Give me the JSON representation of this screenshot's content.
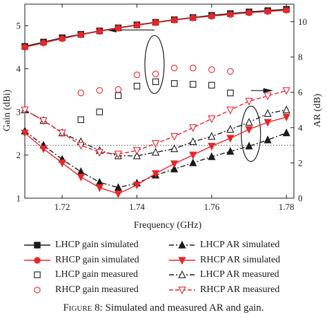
{
  "caption": {
    "figure_label": "Figure 8:",
    "text": "Simulated and measured AR and gain."
  },
  "colors": {
    "black": "#1a1a1a",
    "red": "#e8262a",
    "frame": "#1a1a1a"
  },
  "chart_data": {
    "type": "line",
    "xlabel": "Frequency (GHz)",
    "ylabel_left": "Gain (dBi)",
    "ylabel_right": "AR (dB)",
    "xlim": [
      1.71,
      1.782
    ],
    "ylim_left": [
      1,
      5.5
    ],
    "ylim_right": [
      0,
      11
    ],
    "x_ticks": [
      "1.72",
      "1.74",
      "1.76",
      "1.78"
    ],
    "y_ticks_left": [
      "1",
      "2",
      "3",
      "4",
      "5"
    ],
    "y_ticks_right": [
      "0",
      "2",
      "4",
      "6",
      "8",
      "10"
    ],
    "reference_line": {
      "axis": "right",
      "y": 3,
      "style": "dotted"
    },
    "annotations": [
      {
        "type": "ellipse-arrow",
        "series_group": "gain",
        "points_to": "left axis"
      },
      {
        "type": "ellipse-arrow",
        "series_group": "AR",
        "points_to": "right axis"
      }
    ],
    "legend_position": "bottom",
    "series": [
      {
        "name": "LHCP gain simulated",
        "axis": "left",
        "color": "black",
        "marker": "filled-square",
        "line": "solid",
        "x": [
          1.71,
          1.715,
          1.72,
          1.725,
          1.73,
          1.735,
          1.74,
          1.745,
          1.75,
          1.755,
          1.76,
          1.765,
          1.77,
          1.775,
          1.78
        ],
        "y": [
          4.52,
          4.62,
          4.72,
          4.8,
          4.88,
          4.95,
          5.02,
          5.08,
          5.14,
          5.19,
          5.24,
          5.28,
          5.32,
          5.35,
          5.38
        ]
      },
      {
        "name": "RHCP gain simulated",
        "axis": "left",
        "color": "red",
        "marker": "filled-circle",
        "line": "solid",
        "x": [
          1.71,
          1.715,
          1.72,
          1.725,
          1.73,
          1.735,
          1.74,
          1.745,
          1.75,
          1.755,
          1.76,
          1.765,
          1.77,
          1.775,
          1.78
        ],
        "y": [
          4.5,
          4.6,
          4.7,
          4.79,
          4.87,
          4.94,
          5.01,
          5.07,
          5.13,
          5.18,
          5.22,
          5.26,
          5.3,
          5.33,
          5.36
        ]
      },
      {
        "name": "LHCP gain measured",
        "axis": "left",
        "color": "black",
        "marker": "open-square",
        "line": "none",
        "x": [
          1.725,
          1.73,
          1.735,
          1.74,
          1.745,
          1.75,
          1.755,
          1.76,
          1.765
        ],
        "y": [
          2.82,
          3.0,
          3.38,
          3.6,
          3.7,
          3.66,
          3.64,
          3.62,
          3.44
        ]
      },
      {
        "name": "RHCP gain measured",
        "axis": "left",
        "color": "red",
        "marker": "open-circle",
        "line": "none",
        "x": [
          1.725,
          1.73,
          1.735,
          1.74,
          1.745,
          1.75,
          1.755,
          1.76,
          1.765
        ],
        "y": [
          3.44,
          3.5,
          3.52,
          3.86,
          3.88,
          4.02,
          4.02,
          3.98,
          3.94
        ]
      },
      {
        "name": "LHCP AR simulated",
        "axis": "right",
        "color": "black",
        "marker": "filled-triangle-up",
        "line": "dash-dot",
        "x": [
          1.71,
          1.715,
          1.72,
          1.725,
          1.73,
          1.735,
          1.74,
          1.745,
          1.75,
          1.755,
          1.76,
          1.765,
          1.77,
          1.775,
          1.78
        ],
        "y": [
          3.8,
          3.0,
          2.2,
          1.5,
          0.9,
          0.6,
          0.85,
          1.3,
          1.65,
          2.0,
          2.35,
          2.65,
          2.95,
          3.3,
          3.7
        ]
      },
      {
        "name": "RHCP AR simulated",
        "axis": "right",
        "color": "red",
        "marker": "filled-triangle-down",
        "line": "solid",
        "x": [
          1.71,
          1.715,
          1.72,
          1.725,
          1.73,
          1.735,
          1.74,
          1.745,
          1.75,
          1.755,
          1.76,
          1.765,
          1.77,
          1.775,
          1.78
        ],
        "y": [
          3.7,
          2.8,
          2.0,
          1.2,
          0.6,
          0.25,
          0.75,
          1.4,
          1.95,
          2.45,
          2.95,
          3.4,
          3.9,
          4.3,
          4.6
        ]
      },
      {
        "name": "LHCP AR measured",
        "axis": "right",
        "color": "black",
        "marker": "open-triangle-up",
        "line": "dash-dot",
        "x": [
          1.71,
          1.715,
          1.72,
          1.725,
          1.73,
          1.735,
          1.74,
          1.745,
          1.75,
          1.755,
          1.76,
          1.765,
          1.77,
          1.775,
          1.78
        ],
        "y": [
          5.0,
          4.4,
          3.7,
          3.2,
          2.7,
          2.4,
          2.4,
          2.6,
          2.8,
          3.2,
          3.5,
          3.9,
          4.3,
          4.8,
          5.0
        ]
      },
      {
        "name": "RHCP AR measured",
        "axis": "right",
        "color": "red",
        "marker": "open-triangle-down",
        "line": "dashed",
        "x": [
          1.71,
          1.715,
          1.72,
          1.725,
          1.73,
          1.735,
          1.74,
          1.745,
          1.75,
          1.755,
          1.76,
          1.765,
          1.77,
          1.775,
          1.78
        ],
        "y": [
          5.0,
          4.4,
          3.7,
          3.0,
          2.6,
          2.5,
          2.7,
          3.1,
          3.5,
          4.0,
          4.5,
          5.0,
          5.5,
          5.8,
          6.1
        ]
      }
    ]
  }
}
